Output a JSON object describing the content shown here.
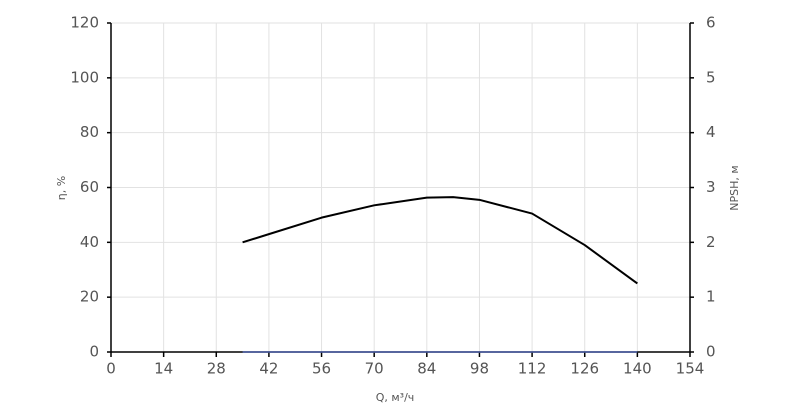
{
  "chart_data": {
    "type": "line",
    "x_label": "Q, м³/ч",
    "y_label": "η, %",
    "y2_label": "NPSH, м",
    "x": [
      35,
      42,
      56,
      70,
      84,
      91,
      98,
      112,
      126,
      140
    ],
    "series": [
      {
        "name": "η",
        "color": "#000000",
        "values": [
          40,
          43,
          49,
          53.5,
          56.3,
          56.5,
          55.5,
          50.5,
          39,
          25
        ]
      },
      {
        "name": "NPSH",
        "color": "#4a5fa8",
        "axis": "y2",
        "values": [
          0,
          0,
          0,
          0,
          0,
          0,
          0,
          0,
          0,
          0
        ]
      }
    ],
    "xlim": [
      0,
      154
    ],
    "xticks": [
      0,
      14,
      28,
      42,
      56,
      70,
      84,
      98,
      112,
      126,
      140,
      154
    ],
    "ylim": [
      0,
      120
    ],
    "yticks": [
      0,
      20,
      40,
      60,
      80,
      100,
      120
    ],
    "y2lim": [
      0,
      6
    ],
    "y2ticks": [
      0,
      1,
      2,
      3,
      4,
      5,
      6
    ],
    "grid": true
  }
}
